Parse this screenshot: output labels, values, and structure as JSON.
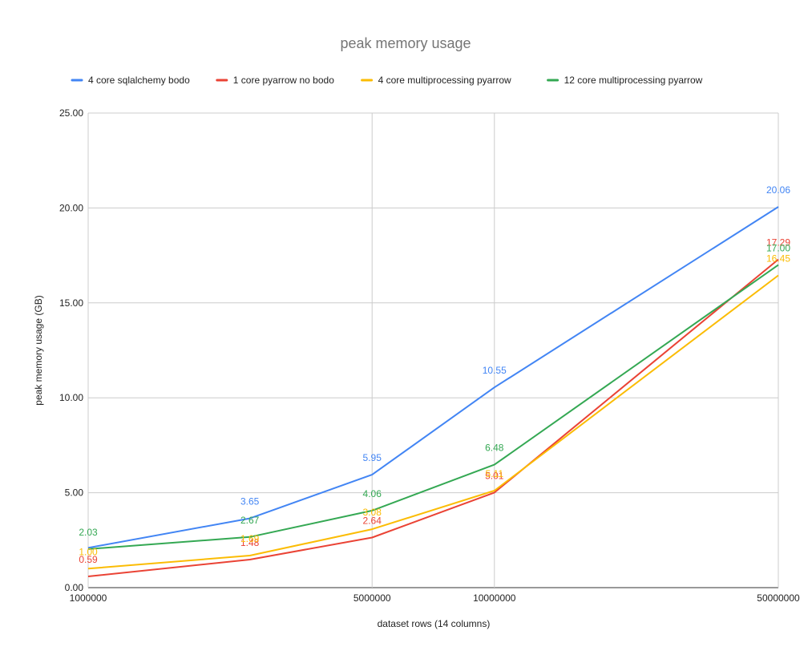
{
  "chart_data": {
    "type": "line",
    "title": "peak memory usage",
    "xlabel": "dataset rows (14 columns)",
    "ylabel": "peak memory usage (GB)",
    "x_scale": "log",
    "x": [
      1000000,
      2500000,
      5000000,
      10000000,
      50000000
    ],
    "xticks": [
      "1000000",
      "5000000",
      "10000000",
      "50000000"
    ],
    "xtick_values": [
      1000000,
      5000000,
      10000000,
      50000000
    ],
    "ylim": [
      0,
      25
    ],
    "yticks": [
      "0.00",
      "5.00",
      "10.00",
      "15.00",
      "20.00",
      "25.00"
    ],
    "ytick_values": [
      0,
      5,
      10,
      15,
      20,
      25
    ],
    "grid": true,
    "legend_position": "top",
    "series": [
      {
        "name": "4 core sqlalchemy bodo",
        "color": "#4285f4",
        "values": [
          2.1,
          3.65,
          5.95,
          10.55,
          20.06
        ],
        "labels": [
          "",
          "3.65",
          "5.95",
          "10.55",
          "20.06"
        ]
      },
      {
        "name": "1 core pyarrow no bodo",
        "color": "#ea4335",
        "values": [
          0.59,
          1.48,
          2.64,
          5.01,
          17.29
        ],
        "labels": [
          "0.59",
          "1.48",
          "2.64",
          "5.01",
          "17.29"
        ]
      },
      {
        "name": "4 core multiprocessing pyarrow",
        "color": "#fbbc04",
        "values": [
          1.0,
          1.69,
          3.08,
          5.11,
          16.45
        ],
        "labels": [
          "1.00",
          "1.69",
          "3.08",
          "5.11",
          "16.45"
        ]
      },
      {
        "name": "12 core multiprocessing pyarrow",
        "color": "#34a853",
        "values": [
          2.03,
          2.67,
          4.06,
          6.48,
          17.0
        ],
        "labels": [
          "2.03",
          "2.67",
          "4.06",
          "6.48",
          "17.00"
        ]
      }
    ]
  }
}
